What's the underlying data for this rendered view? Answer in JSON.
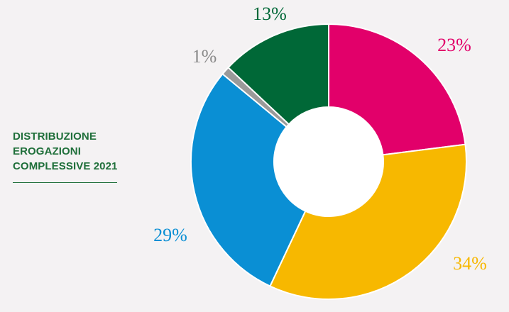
{
  "title": {
    "lines": [
      "DISTRIBUZIONE",
      "EROGAZIONI",
      "COMPLESSIVE 2021"
    ]
  },
  "chart_data": {
    "type": "pie",
    "variant": "donut",
    "title": "DISTRIBUZIONE EROGAZIONI COMPLESSIVE 2021",
    "slices": [
      {
        "label": "23%",
        "value": 23,
        "color": "#e2006a"
      },
      {
        "label": "34%",
        "value": 34,
        "color": "#f7b800"
      },
      {
        "label": "29%",
        "value": 29,
        "color": "#0a8fd4"
      },
      {
        "label": "1%",
        "value": 1,
        "color": "#9a9a9a"
      },
      {
        "label": "13%",
        "value": 13,
        "color": "#006837"
      }
    ],
    "start": "12 o'clock",
    "direction": "clockwise",
    "legend": "none",
    "background": "#f4f2f3"
  }
}
